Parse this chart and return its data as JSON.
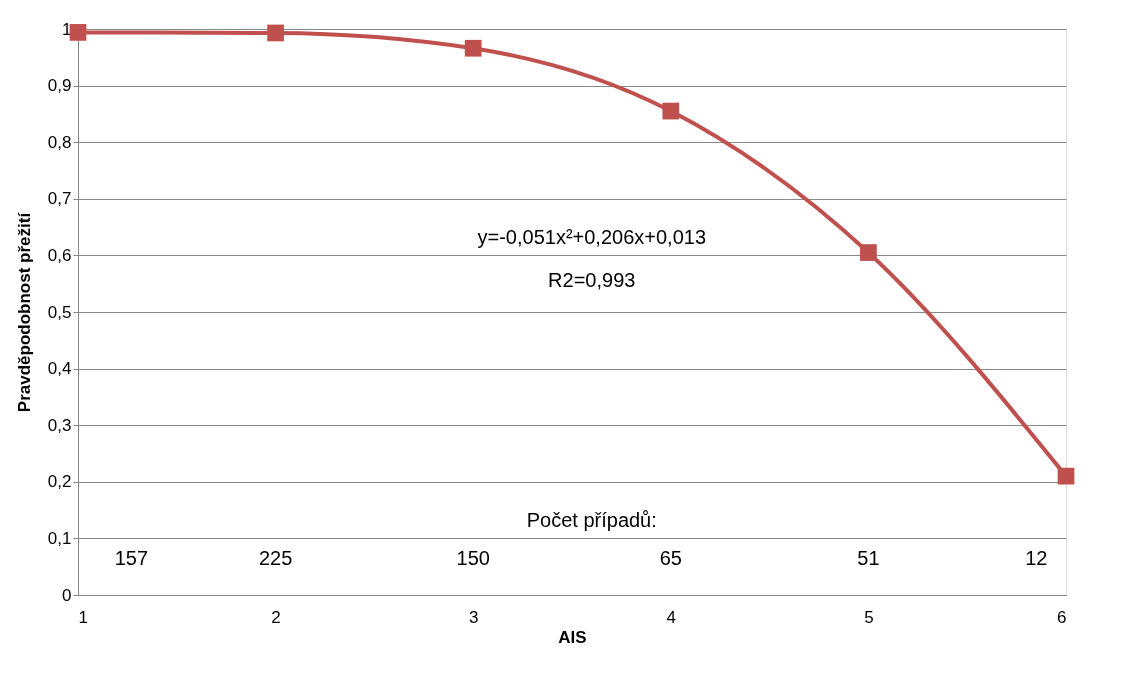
{
  "chart_data": {
    "type": "line",
    "xlabel": "AIS",
    "ylabel": "Pravděpodobnost přežití",
    "x": [
      1,
      2,
      3,
      4,
      5,
      6
    ],
    "series": [
      {
        "color": "#c0504d",
        "values": [
          0.994,
          0.993,
          0.966,
          0.855,
          0.605,
          0.21
        ]
      }
    ],
    "xlim": [
      1,
      6
    ],
    "xticks": [
      1,
      2,
      3,
      4,
      5,
      6
    ],
    "ylim": [
      0,
      1
    ],
    "yticks": [
      {
        "value": 0,
        "label": "0"
      },
      {
        "value": 0.1,
        "label": "0,1"
      },
      {
        "value": 0.2,
        "label": "0,2"
      },
      {
        "value": 0.3,
        "label": "0,3"
      },
      {
        "value": 0.4,
        "label": "0,4"
      },
      {
        "value": 0.5,
        "label": "0,5"
      },
      {
        "value": 0.6,
        "label": "0,6"
      },
      {
        "value": 0.7,
        "label": "0,7"
      },
      {
        "value": 0.8,
        "label": "0,8"
      },
      {
        "value": 0.9,
        "label": "0,9"
      },
      {
        "value": 1,
        "label": "1"
      }
    ],
    "grid": "y",
    "marker": "square",
    "line_style": "solid",
    "annotations": [
      "y=-0,051x²+0,206x+0,013",
      "R2=0,993",
      "Počet případů:",
      "157",
      "225",
      "150",
      "65",
      "51",
      "12"
    ]
  }
}
